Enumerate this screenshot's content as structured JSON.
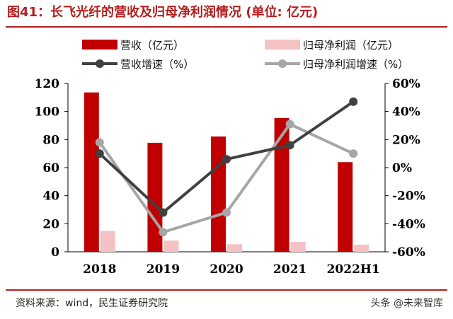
{
  "title": "图41：长飞光纤的营收及归母净利润情况 (单位: 亿元)",
  "source": "资料来源：wind，民生证券研究院",
  "watermark": "头条 @未来智库",
  "colors": {
    "revenue_bar": "#c00000",
    "profit_bar": "#f4c2c2",
    "revenue_growth_line": "#404040",
    "profit_growth_line": "#a6a6a6",
    "title": "#b41e1e"
  },
  "chart_data": {
    "type": "bar",
    "categories": [
      "2018",
      "2019",
      "2020",
      "2021",
      "2022H1"
    ],
    "series": [
      {
        "name": "营收（亿元）",
        "kind": "bar",
        "axis": "left",
        "values": [
          113.6,
          77.7,
          82.2,
          95.4,
          63.9
        ]
      },
      {
        "name": "归母净利润（亿元）",
        "kind": "bar",
        "axis": "left",
        "values": [
          14.9,
          8.0,
          5.4,
          7.1,
          5.1
        ]
      },
      {
        "name": "营收增速（%）",
        "kind": "line",
        "axis": "right",
        "values": [
          10.0,
          -32.0,
          6.0,
          16.0,
          47.0
        ]
      },
      {
        "name": "归母净利润增速（%）",
        "kind": "line",
        "axis": "right",
        "values": [
          18.0,
          -46.0,
          -32.0,
          31.0,
          10.0
        ]
      }
    ],
    "left_axis": {
      "ylim": [
        0,
        120
      ],
      "ticks": [
        "0",
        "20",
        "40",
        "60",
        "80",
        "100",
        "120"
      ]
    },
    "right_axis": {
      "ylim": [
        -60,
        60
      ],
      "ticks": [
        "-60%",
        "-40%",
        "-20%",
        "0%",
        "20%",
        "40%",
        "60%"
      ]
    },
    "legend_position": "top",
    "grid": false
  }
}
